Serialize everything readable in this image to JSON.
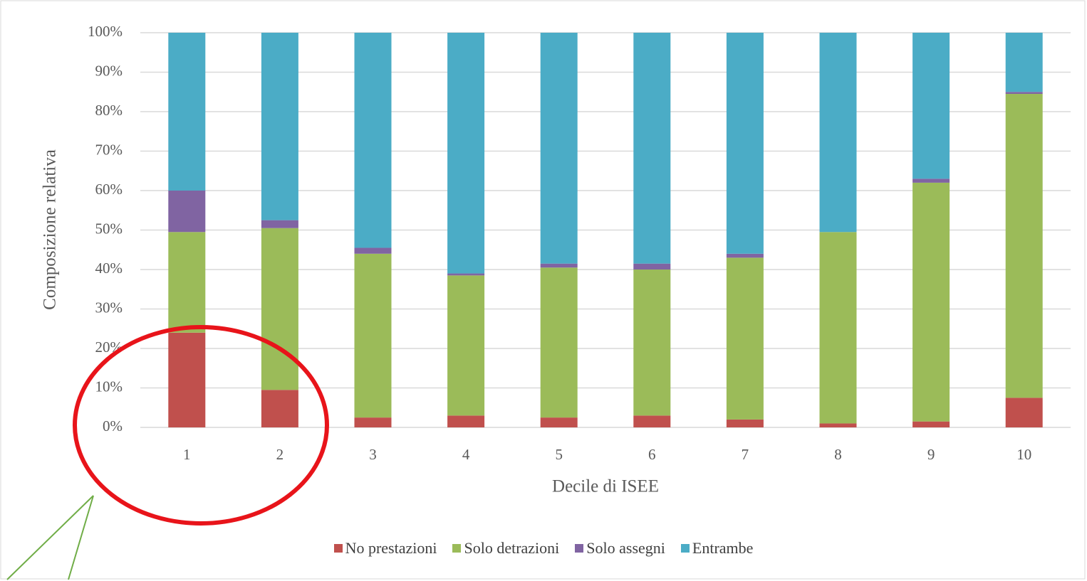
{
  "chart_data": {
    "type": "stacked_bar",
    "x_label": "Decile di ISEE",
    "y_label": "Composizione relativa",
    "categories": [
      "1",
      "2",
      "3",
      "4",
      "5",
      "6",
      "7",
      "8",
      "9",
      "10"
    ],
    "series": [
      {
        "name": "No prestazioni",
        "color": "#c0504d",
        "values": [
          24,
          9.5,
          2.5,
          3,
          2.5,
          3,
          2,
          1,
          1.5,
          7.5
        ]
      },
      {
        "name": "Solo detrazioni",
        "color": "#9bbb59",
        "values": [
          25.5,
          41,
          41.5,
          35.5,
          38,
          37,
          41,
          48.5,
          60.5,
          77
        ]
      },
      {
        "name": "Solo assegni",
        "color": "#8064a2",
        "values": [
          10.5,
          2,
          1.5,
          0.5,
          1,
          1.5,
          1,
          0,
          1,
          0.5
        ]
      },
      {
        "name": "Entrambe",
        "color": "#4bacc6",
        "values": [
          40,
          47.5,
          54.5,
          61,
          58.5,
          58.5,
          56,
          50.5,
          37,
          15
        ]
      }
    ],
    "ylim": [
      0,
      100
    ],
    "yticks": [
      {
        "value": 0,
        "label": "0%"
      },
      {
        "value": 10,
        "label": "10%"
      },
      {
        "value": 20,
        "label": "20%"
      },
      {
        "value": 30,
        "label": "30%"
      },
      {
        "value": 40,
        "label": "40%"
      },
      {
        "value": 50,
        "label": "50%"
      },
      {
        "value": 60,
        "label": "60%"
      },
      {
        "value": 70,
        "label": "70%"
      },
      {
        "value": 80,
        "label": "80%"
      },
      {
        "value": 90,
        "label": "90%"
      },
      {
        "value": 100,
        "label": "100%"
      }
    ],
    "grid": true
  }
}
